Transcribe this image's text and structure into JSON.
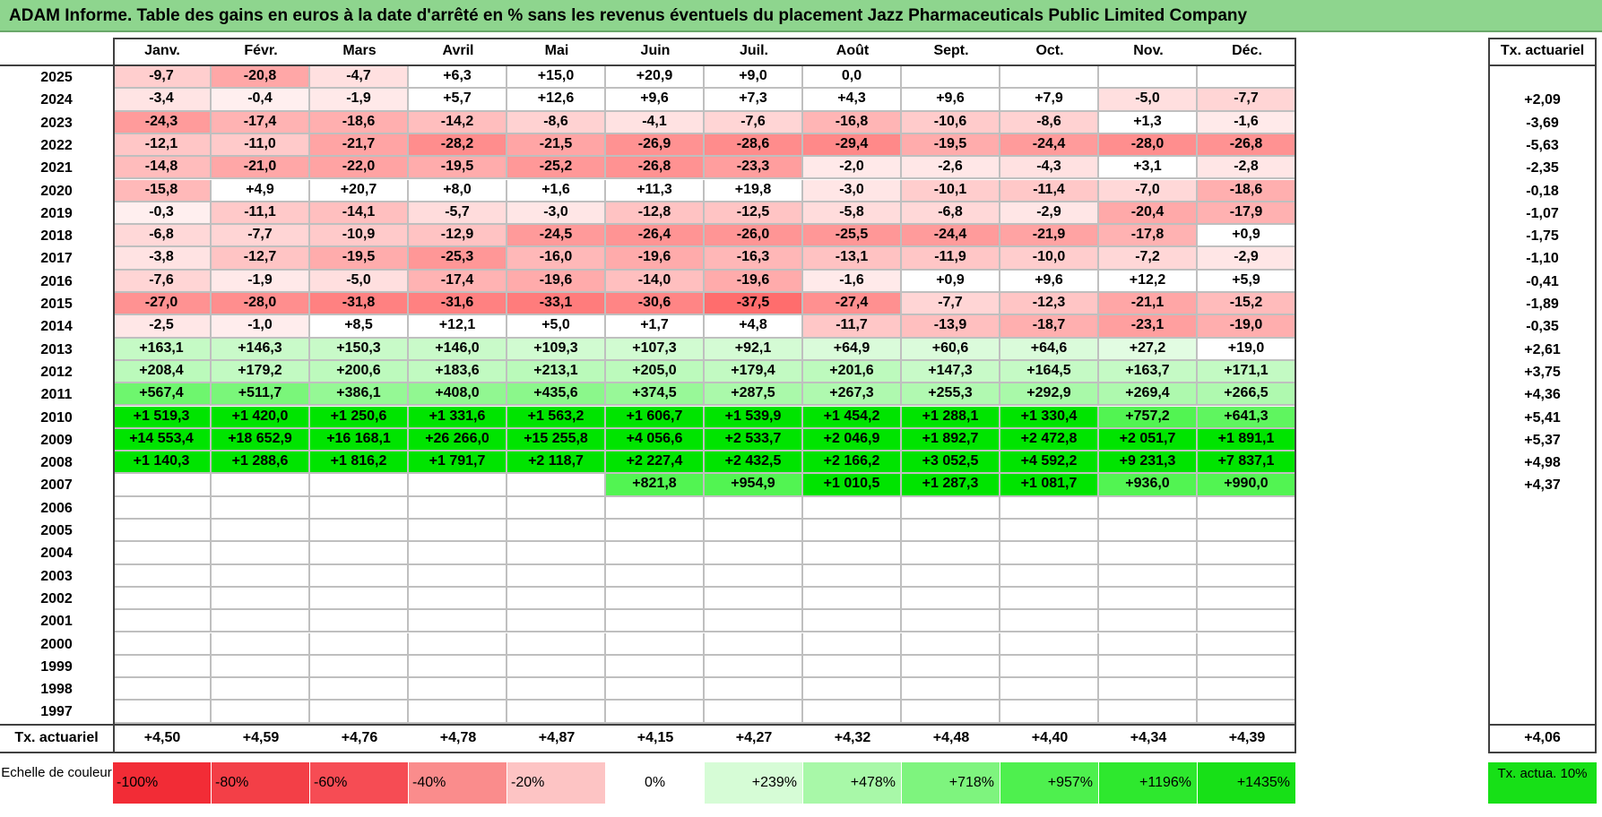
{
  "title": "ADAM Informe. Table des gains en euros à la date d'arrêté en % sans les revenus éventuels du placement Jazz Pharmaceuticals Public Limited Company",
  "months": [
    "Janv.",
    "Févr.",
    "Mars",
    "Avril",
    "Mai",
    "Juin",
    "Juil.",
    "Août",
    "Sept.",
    "Oct.",
    "Nov.",
    "Déc."
  ],
  "actuarial_header": "Tx. actuariel",
  "totals_label": "Tx. actuariel",
  "rows": [
    {
      "year": "2025",
      "values": [
        "-9,7",
        "-20,8",
        "-4,7",
        "+6,3",
        "+15,0",
        "+20,9",
        "+9,0",
        "0,0",
        "",
        "",
        "",
        ""
      ],
      "actuarial": ""
    },
    {
      "year": "2024",
      "values": [
        "-3,4",
        "-0,4",
        "-1,9",
        "+5,7",
        "+12,6",
        "+9,6",
        "+7,3",
        "+4,3",
        "+9,6",
        "+7,9",
        "-5,0",
        "-7,7"
      ],
      "actuarial": "+2,09"
    },
    {
      "year": "2023",
      "values": [
        "-24,3",
        "-17,4",
        "-18,6",
        "-14,2",
        "-8,6",
        "-4,1",
        "-7,6",
        "-16,8",
        "-10,6",
        "-8,6",
        "+1,3",
        "-1,6"
      ],
      "actuarial": "-3,69"
    },
    {
      "year": "2022",
      "values": [
        "-12,1",
        "-11,0",
        "-21,7",
        "-28,2",
        "-21,5",
        "-26,9",
        "-28,6",
        "-29,4",
        "-19,5",
        "-24,4",
        "-28,0",
        "-26,8"
      ],
      "actuarial": "-5,63"
    },
    {
      "year": "2021",
      "values": [
        "-14,8",
        "-21,0",
        "-22,0",
        "-19,5",
        "-25,2",
        "-26,8",
        "-23,3",
        "-2,0",
        "-2,6",
        "-4,3",
        "+3,1",
        "-2,8"
      ],
      "actuarial": "-2,35"
    },
    {
      "year": "2020",
      "values": [
        "-15,8",
        "+4,9",
        "+20,7",
        "+8,0",
        "+1,6",
        "+11,3",
        "+19,8",
        "-3,0",
        "-10,1",
        "-11,4",
        "-7,0",
        "-18,6"
      ],
      "actuarial": "-0,18"
    },
    {
      "year": "2019",
      "values": [
        "-0,3",
        "-11,1",
        "-14,1",
        "-5,7",
        "-3,0",
        "-12,8",
        "-12,5",
        "-5,8",
        "-6,8",
        "-2,9",
        "-20,4",
        "-17,9"
      ],
      "actuarial": "-1,07"
    },
    {
      "year": "2018",
      "values": [
        "-6,8",
        "-7,7",
        "-10,9",
        "-12,9",
        "-24,5",
        "-26,4",
        "-26,0",
        "-25,5",
        "-24,4",
        "-21,9",
        "-17,8",
        "+0,9"
      ],
      "actuarial": "-1,75"
    },
    {
      "year": "2017",
      "values": [
        "-3,8",
        "-12,7",
        "-19,5",
        "-25,3",
        "-16,0",
        "-19,6",
        "-16,3",
        "-13,1",
        "-11,9",
        "-10,0",
        "-7,2",
        "-2,9"
      ],
      "actuarial": "-1,10"
    },
    {
      "year": "2016",
      "values": [
        "-7,6",
        "-1,9",
        "-5,0",
        "-17,4",
        "-19,6",
        "-14,0",
        "-19,6",
        "-1,6",
        "+0,9",
        "+9,6",
        "+12,2",
        "+5,9"
      ],
      "actuarial": "-0,41"
    },
    {
      "year": "2015",
      "values": [
        "-27,0",
        "-28,0",
        "-31,8",
        "-31,6",
        "-33,1",
        "-30,6",
        "-37,5",
        "-27,4",
        "-7,7",
        "-12,3",
        "-21,1",
        "-15,2"
      ],
      "actuarial": "-1,89"
    },
    {
      "year": "2014",
      "values": [
        "-2,5",
        "-1,0",
        "+8,5",
        "+12,1",
        "+5,0",
        "+1,7",
        "+4,8",
        "-11,7",
        "-13,9",
        "-18,7",
        "-23,1",
        "-19,0"
      ],
      "actuarial": "-0,35"
    },
    {
      "year": "2013",
      "values": [
        "+163,1",
        "+146,3",
        "+150,3",
        "+146,0",
        "+109,3",
        "+107,3",
        "+92,1",
        "+64,9",
        "+60,6",
        "+64,6",
        "+27,2",
        "+19,0"
      ],
      "actuarial": "+2,61"
    },
    {
      "year": "2012",
      "values": [
        "+208,4",
        "+179,2",
        "+200,6",
        "+183,6",
        "+213,1",
        "+205,0",
        "+179,4",
        "+201,6",
        "+147,3",
        "+164,5",
        "+163,7",
        "+171,1"
      ],
      "actuarial": "+3,75"
    },
    {
      "year": "2011",
      "values": [
        "+567,4",
        "+511,7",
        "+386,1",
        "+408,0",
        "+435,6",
        "+374,5",
        "+287,5",
        "+267,3",
        "+255,3",
        "+292,9",
        "+269,4",
        "+266,5"
      ],
      "actuarial": "+4,36"
    },
    {
      "year": "2010",
      "values": [
        "+1 519,3",
        "+1 420,0",
        "+1 250,6",
        "+1 331,6",
        "+1 563,2",
        "+1 606,7",
        "+1 539,9",
        "+1 454,2",
        "+1 288,1",
        "+1 330,4",
        "+757,2",
        "+641,3"
      ],
      "actuarial": "+5,41"
    },
    {
      "year": "2009",
      "values": [
        "+14 553,4",
        "+18 652,9",
        "+16 168,1",
        "+26 266,0",
        "+15 255,8",
        "+4 056,6",
        "+2 533,7",
        "+2 046,9",
        "+1 892,7",
        "+2 472,8",
        "+2 051,7",
        "+1 891,1"
      ],
      "actuarial": "+5,37"
    },
    {
      "year": "2008",
      "values": [
        "+1 140,3",
        "+1 288,6",
        "+1 816,2",
        "+1 791,7",
        "+2 118,7",
        "+2 227,4",
        "+2 432,5",
        "+2 166,2",
        "+3 052,5",
        "+4 592,2",
        "+9 231,3",
        "+7 837,1"
      ],
      "actuarial": "+4,98"
    },
    {
      "year": "2007",
      "values": [
        "",
        "",
        "",
        "",
        "",
        "+821,8",
        "+954,9",
        "+1 010,5",
        "+1 287,3",
        "+1 081,7",
        "+936,0",
        "+990,0"
      ],
      "actuarial": "+4,37"
    },
    {
      "year": "2006",
      "values": [
        "",
        "",
        "",
        "",
        "",
        "",
        "",
        "",
        "",
        "",
        "",
        ""
      ],
      "actuarial": ""
    },
    {
      "year": "2005",
      "values": [
        "",
        "",
        "",
        "",
        "",
        "",
        "",
        "",
        "",
        "",
        "",
        ""
      ],
      "actuarial": ""
    },
    {
      "year": "2004",
      "values": [
        "",
        "",
        "",
        "",
        "",
        "",
        "",
        "",
        "",
        "",
        "",
        ""
      ],
      "actuarial": ""
    },
    {
      "year": "2003",
      "values": [
        "",
        "",
        "",
        "",
        "",
        "",
        "",
        "",
        "",
        "",
        "",
        ""
      ],
      "actuarial": ""
    },
    {
      "year": "2002",
      "values": [
        "",
        "",
        "",
        "",
        "",
        "",
        "",
        "",
        "",
        "",
        "",
        ""
      ],
      "actuarial": ""
    },
    {
      "year": "2001",
      "values": [
        "",
        "",
        "",
        "",
        "",
        "",
        "",
        "",
        "",
        "",
        "",
        ""
      ],
      "actuarial": ""
    },
    {
      "year": "2000",
      "values": [
        "",
        "",
        "",
        "",
        "",
        "",
        "",
        "",
        "",
        "",
        "",
        ""
      ],
      "actuarial": ""
    },
    {
      "year": "1999",
      "values": [
        "",
        "",
        "",
        "",
        "",
        "",
        "",
        "",
        "",
        "",
        "",
        ""
      ],
      "actuarial": ""
    },
    {
      "year": "1998",
      "values": [
        "",
        "",
        "",
        "",
        "",
        "",
        "",
        "",
        "",
        "",
        "",
        ""
      ],
      "actuarial": ""
    },
    {
      "year": "1997",
      "values": [
        "",
        "",
        "",
        "",
        "",
        "",
        "",
        "",
        "",
        "",
        "",
        ""
      ],
      "actuarial": ""
    }
  ],
  "monthly_totals": [
    "+4,50",
    "+4,59",
    "+4,76",
    "+4,78",
    "+4,87",
    "+4,15",
    "+4,27",
    "+4,32",
    "+4,48",
    "+4,40",
    "+4,34",
    "+4,39"
  ],
  "overall_total": "+4,06",
  "scale": {
    "label": "Echelle de couleur",
    "items": [
      {
        "text": "-100%",
        "color": "#f22c36"
      },
      {
        "text": "-80%",
        "color": "#f33f47"
      },
      {
        "text": "-60%",
        "color": "#f64c54"
      },
      {
        "text": "-40%",
        "color": "#fa8c8c"
      },
      {
        "text": "-20%",
        "color": "#fdc4c4"
      },
      {
        "text": "0%",
        "color": "#ffffff"
      },
      {
        "text": "+239%",
        "color": "#d6fcd6"
      },
      {
        "text": "+478%",
        "color": "#a8f8a8"
      },
      {
        "text": "+718%",
        "color": "#7ef47e"
      },
      {
        "text": "+957%",
        "color": "#4ef04e"
      },
      {
        "text": "+1196%",
        "color": "#2ee82e"
      },
      {
        "text": "+1435%",
        "color": "#17e017"
      }
    ],
    "actual_label": "Tx. actua. 10%",
    "actual_color": "#17e017"
  },
  "colors": {
    "title_bar": "#8ed58e",
    "grid_line": "#bfbfbf",
    "frame": "#404040",
    "positive_max": "#00e000",
    "negative_max": "#ff6a6a"
  }
}
